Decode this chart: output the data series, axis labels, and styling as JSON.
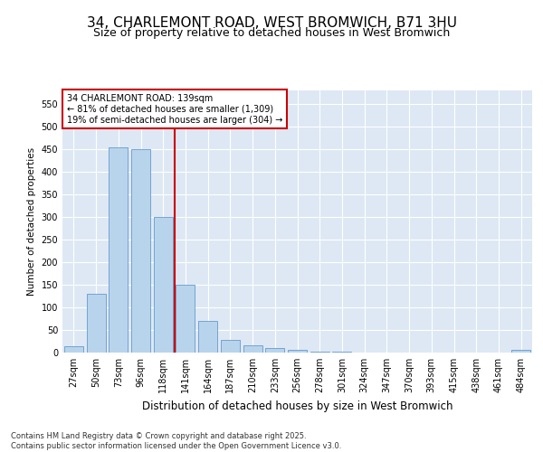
{
  "title_line1": "34, CHARLEMONT ROAD, WEST BROMWICH, B71 3HU",
  "title_line2": "Size of property relative to detached houses in West Bromwich",
  "xlabel": "Distribution of detached houses by size in West Bromwich",
  "ylabel": "Number of detached properties",
  "footnote": "Contains HM Land Registry data © Crown copyright and database right 2025.\nContains public sector information licensed under the Open Government Licence v3.0.",
  "annotation_title": "34 CHARLEMONT ROAD: 139sqm",
  "annotation_line1": "← 81% of detached houses are smaller (1,309)",
  "annotation_line2": "19% of semi-detached houses are larger (304) →",
  "bar_color": "#b8d4ec",
  "bar_edge_color": "#6699cc",
  "highlight_color": "#cc0000",
  "bg_color": "#dde8f4",
  "grid_color": "#ffffff",
  "categories": [
    "27sqm",
    "50sqm",
    "73sqm",
    "96sqm",
    "118sqm",
    "141sqm",
    "164sqm",
    "187sqm",
    "210sqm",
    "233sqm",
    "256sqm",
    "278sqm",
    "301sqm",
    "324sqm",
    "347sqm",
    "370sqm",
    "393sqm",
    "415sqm",
    "438sqm",
    "461sqm",
    "484sqm"
  ],
  "values": [
    15,
    130,
    455,
    450,
    300,
    150,
    70,
    28,
    17,
    10,
    7,
    2,
    2,
    1,
    1,
    1,
    1,
    1,
    0,
    0,
    7
  ],
  "redline_index": 5,
  "ylim": [
    0,
    580
  ],
  "yticks": [
    0,
    50,
    100,
    150,
    200,
    250,
    300,
    350,
    400,
    450,
    500,
    550
  ],
  "title_fontsize": 11,
  "subtitle_fontsize": 9,
  "xlabel_fontsize": 8.5,
  "ylabel_fontsize": 7.5,
  "tick_fontsize": 7,
  "annot_fontsize": 7,
  "footnote_fontsize": 6
}
